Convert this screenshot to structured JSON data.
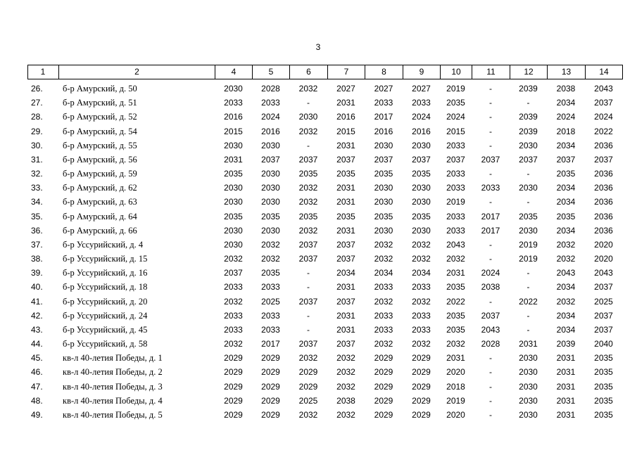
{
  "page_number": "3",
  "table": {
    "header": [
      "1",
      "2",
      "4",
      "5",
      "6",
      "7",
      "8",
      "9",
      "10",
      "11",
      "12",
      "13",
      "14"
    ],
    "rows": [
      [
        "26.",
        "б-р Амурский, д. 50",
        "2030",
        "2028",
        "2032",
        "2027",
        "2027",
        "2027",
        "2019",
        "-",
        "2039",
        "2038",
        "2043"
      ],
      [
        "27.",
        "б-р Амурский, д. 51",
        "2033",
        "2033",
        "-",
        "2031",
        "2033",
        "2033",
        "2035",
        "-",
        "-",
        "2034",
        "2037"
      ],
      [
        "28.",
        "б-р Амурский, д. 52",
        "2016",
        "2024",
        "2030",
        "2016",
        "2017",
        "2024",
        "2024",
        "-",
        "2039",
        "2024",
        "2024"
      ],
      [
        "29.",
        "б-р Амурский, д. 54",
        "2015",
        "2016",
        "2032",
        "2015",
        "2016",
        "2016",
        "2015",
        "-",
        "2039",
        "2018",
        "2022"
      ],
      [
        "30.",
        "б-р Амурский, д. 55",
        "2030",
        "2030",
        "-",
        "2031",
        "2030",
        "2030",
        "2033",
        "-",
        "2030",
        "2034",
        "2036"
      ],
      [
        "31.",
        "б-р Амурский, д. 56",
        "2031",
        "2037",
        "2037",
        "2037",
        "2037",
        "2037",
        "2037",
        "2037",
        "2037",
        "2037",
        "2037"
      ],
      [
        "32.",
        "б-р Амурский, д. 59",
        "2035",
        "2030",
        "2035",
        "2035",
        "2035",
        "2035",
        "2033",
        "-",
        "-",
        "2035",
        "2036"
      ],
      [
        "33.",
        "б-р Амурский, д. 62",
        "2030",
        "2030",
        "2032",
        "2031",
        "2030",
        "2030",
        "2033",
        "2033",
        "2030",
        "2034",
        "2036"
      ],
      [
        "34.",
        "б-р Амурский, д. 63",
        "2030",
        "2030",
        "2032",
        "2031",
        "2030",
        "2030",
        "2019",
        "-",
        "-",
        "2034",
        "2036"
      ],
      [
        "35.",
        "б-р Амурский, д. 64",
        "2035",
        "2035",
        "2035",
        "2035",
        "2035",
        "2035",
        "2033",
        "2017",
        "2035",
        "2035",
        "2036"
      ],
      [
        "36.",
        "б-р Амурский, д. 66",
        "2030",
        "2030",
        "2032",
        "2031",
        "2030",
        "2030",
        "2033",
        "2017",
        "2030",
        "2034",
        "2036"
      ],
      [
        "37.",
        "б-р Уссурийский, д. 4",
        "2030",
        "2032",
        "2037",
        "2037",
        "2032",
        "2032",
        "2043",
        "-",
        "2019",
        "2032",
        "2020"
      ],
      [
        "38.",
        "б-р Уссурийский, д. 15",
        "2032",
        "2032",
        "2037",
        "2037",
        "2032",
        "2032",
        "2032",
        "-",
        "2019",
        "2032",
        "2020"
      ],
      [
        "39.",
        "б-р Уссурийский, д. 16",
        "2037",
        "2035",
        "-",
        "2034",
        "2034",
        "2034",
        "2031",
        "2024",
        "-",
        "2043",
        "2043"
      ],
      [
        "40.",
        "б-р Уссурийский, д. 18",
        "2033",
        "2033",
        "-",
        "2031",
        "2033",
        "2033",
        "2035",
        "2038",
        "-",
        "2034",
        "2037"
      ],
      [
        "41.",
        "б-р Уссурийский, д. 20",
        "2032",
        "2025",
        "2037",
        "2037",
        "2032",
        "2032",
        "2022",
        "-",
        "2022",
        "2032",
        "2025"
      ],
      [
        "42.",
        "б-р Уссурийский, д. 24",
        "2033",
        "2033",
        "-",
        "2031",
        "2033",
        "2033",
        "2035",
        "2037",
        "-",
        "2034",
        "2037"
      ],
      [
        "43.",
        "б-р Уссурийский, д. 45",
        "2033",
        "2033",
        "-",
        "2031",
        "2033",
        "2033",
        "2035",
        "2043",
        "-",
        "2034",
        "2037"
      ],
      [
        "44.",
        "б-р Уссурийский, д. 58",
        "2032",
        "2017",
        "2037",
        "2037",
        "2032",
        "2032",
        "2032",
        "2028",
        "2031",
        "2039",
        "2040"
      ],
      [
        "45.",
        "кв-л 40-летия Победы, д. 1",
        "2029",
        "2029",
        "2032",
        "2032",
        "2029",
        "2029",
        "2031",
        "-",
        "2030",
        "2031",
        "2035"
      ],
      [
        "46.",
        "кв-л 40-летия Победы, д. 2",
        "2029",
        "2029",
        "2029",
        "2032",
        "2029",
        "2029",
        "2020",
        "-",
        "2030",
        "2031",
        "2035"
      ],
      [
        "47.",
        "кв-л 40-летия Победы, д. 3",
        "2029",
        "2029",
        "2029",
        "2032",
        "2029",
        "2029",
        "2018",
        "-",
        "2030",
        "2031",
        "2035"
      ],
      [
        "48.",
        "кв-л 40-летия Победы, д. 4",
        "2029",
        "2029",
        "2025",
        "2038",
        "2029",
        "2029",
        "2019",
        "-",
        "2030",
        "2031",
        "2035"
      ],
      [
        "49.",
        "кв-л 40-летия Победы, д. 5",
        "2029",
        "2029",
        "2032",
        "2032",
        "2029",
        "2029",
        "2020",
        "-",
        "2030",
        "2031",
        "2035"
      ]
    ]
  }
}
